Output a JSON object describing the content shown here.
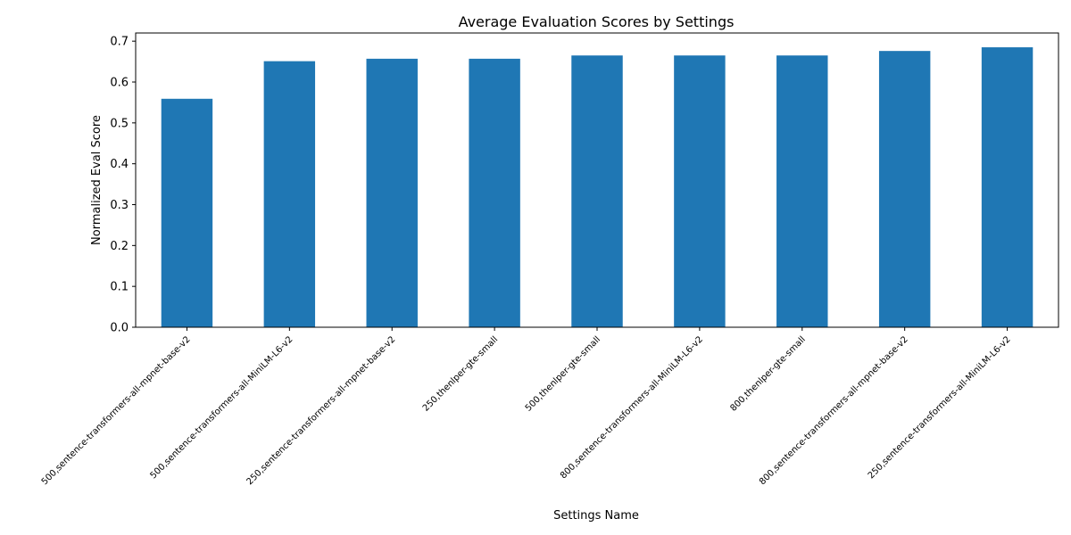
{
  "chart_data": {
    "type": "bar",
    "title": "Average Evaluation Scores by Settings",
    "xlabel": "Settings Name",
    "ylabel": "Normalized Eval Score",
    "categories": [
      "500,sentence-transformers-all-mpnet-base-v2",
      "500,sentence-transformers-all-MiniLM-L6-v2",
      "250,sentence-transformers-all-mpnet-base-v2",
      "250,thenlper-gte-small",
      "500,thenlper-gte-small",
      "800,sentence-transformers-all-MiniLM-L6-v2",
      "800,thenlper-gte-small",
      "800,sentence-transformers-all-mpnet-base-v2",
      "250,sentence-transformers-all-MiniLM-L6-v2"
    ],
    "values": [
      0.559,
      0.651,
      0.657,
      0.657,
      0.665,
      0.665,
      0.665,
      0.676,
      0.685
    ],
    "ylim": [
      0,
      0.72
    ],
    "yticks": [
      "0.0",
      "0.1",
      "0.2",
      "0.3",
      "0.4",
      "0.5",
      "0.6",
      "0.7"
    ],
    "bar_color": "#1f77b4",
    "grid": false,
    "legend": "none"
  }
}
